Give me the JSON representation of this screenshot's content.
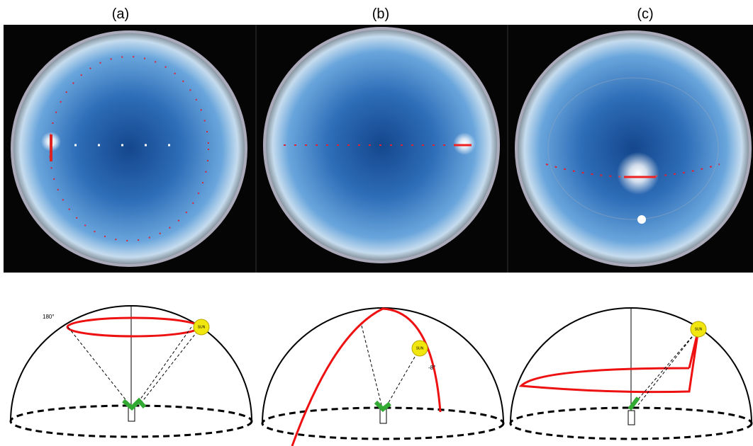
{
  "panels": [
    {
      "label": "(a)",
      "angle": "180°",
      "sun": "SUN"
    },
    {
      "label": "(b)",
      "angle": "-8°",
      "sun": "SUN"
    },
    {
      "label": "(c)",
      "sun": "SUN"
    }
  ]
}
